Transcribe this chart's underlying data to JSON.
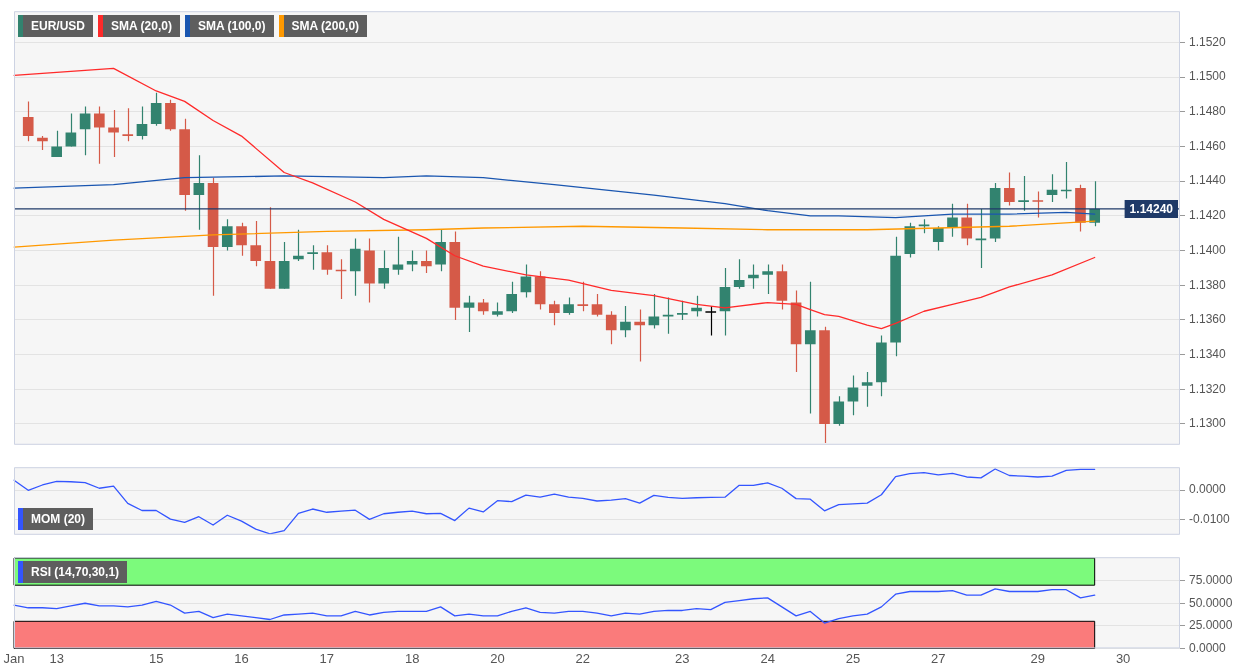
{
  "chart_data": [
    {
      "type": "candlestick",
      "categories": [
        null,
        null,
        null,
        null,
        null,
        null,
        null,
        null,
        null,
        null,
        null,
        null,
        null,
        null,
        null,
        null,
        null,
        null,
        null,
        null,
        null,
        null,
        null,
        null,
        null,
        null,
        null,
        null,
        null,
        null,
        null,
        null,
        null,
        null,
        null,
        null,
        null,
        null,
        null,
        null,
        null,
        null,
        null,
        null,
        null,
        null,
        null,
        null,
        null,
        null,
        null,
        null,
        null,
        null,
        null,
        null,
        null,
        null,
        null,
        null,
        null,
        null,
        null,
        null,
        null,
        null,
        null,
        null,
        null,
        null,
        null,
        null,
        null,
        null,
        null,
        null,
        null,
        null,
        null,
        null,
        null,
        null,
        null
      ],
      "series": [
        {
          "name": "EUR/USD",
          "type": "candlestick",
          "color": "#32836f",
          "ohlc": [
            null,
            [
              1.1477,
              1.1486,
              1.1463,
              1.1466
            ],
            [
              1.1465,
              1.1466,
              1.1458,
              1.1463
            ],
            [
              1.1454,
              1.1469,
              1.1454,
              1.146
            ],
            [
              1.146,
              1.1479,
              1.146,
              1.1468
            ],
            [
              1.147,
              1.1483,
              1.1455,
              1.1479
            ],
            [
              1.1479,
              1.1483,
              1.145,
              1.1471
            ],
            [
              1.1471,
              1.1481,
              1.1454,
              1.1468
            ],
            [
              1.1467,
              1.1482,
              1.1463,
              1.1466
            ],
            [
              1.1466,
              1.1483,
              1.1464,
              1.1473
            ],
            [
              1.1473,
              1.1491,
              1.1472,
              1.1485
            ],
            [
              1.1485,
              1.1487,
              1.1469,
              1.147
            ],
            [
              1.147,
              1.1476,
              1.1423,
              1.1432
            ],
            [
              1.1432,
              1.1455,
              1.1412,
              1.1439
            ],
            [
              1.1439,
              1.1442,
              1.1374,
              1.1402
            ],
            [
              1.1402,
              1.1418,
              1.14,
              1.1414
            ],
            [
              1.1414,
              1.1416,
              1.1397,
              1.1403
            ],
            [
              1.1403,
              1.1417,
              1.1391,
              1.1394
            ],
            [
              1.1394,
              1.1425,
              1.1378,
              1.1378
            ],
            [
              1.1378,
              1.1405,
              1.1378,
              1.1394
            ],
            [
              1.1395,
              1.1412,
              1.1394,
              1.1397
            ],
            [
              1.1398,
              1.1403,
              1.1389,
              1.1399
            ],
            [
              1.1399,
              1.1403,
              1.1386,
              1.1389
            ],
            [
              1.1389,
              1.1395,
              1.1372,
              1.1388
            ],
            [
              1.1388,
              1.1407,
              1.1374,
              1.1401
            ],
            [
              1.14,
              1.1407,
              1.137,
              1.1381
            ],
            [
              1.1381,
              1.14,
              1.1378,
              1.139
            ],
            [
              1.1389,
              1.1408,
              1.1386,
              1.1392
            ],
            [
              1.1392,
              1.14,
              1.1388,
              1.1394
            ],
            [
              1.1394,
              1.14,
              1.1387,
              1.1391
            ],
            [
              1.1392,
              1.1412,
              1.1388,
              1.1405
            ],
            [
              1.1405,
              1.1411,
              1.136,
              1.1367
            ],
            [
              1.1367,
              1.1374,
              1.1353,
              1.137
            ],
            [
              1.137,
              1.1372,
              1.1363,
              1.1365
            ],
            [
              1.1363,
              1.137,
              1.1362,
              1.1365
            ],
            [
              1.1365,
              1.1382,
              1.1364,
              1.1375
            ],
            [
              1.1376,
              1.1392,
              1.1373,
              1.1385
            ],
            [
              1.1385,
              1.1388,
              1.1366,
              1.1369
            ],
            [
              1.1369,
              1.1371,
              1.1357,
              1.1364
            ],
            [
              1.1364,
              1.1373,
              1.1363,
              1.1369
            ],
            [
              1.1369,
              1.1382,
              1.1365,
              1.1368
            ],
            [
              1.1369,
              1.1375,
              1.1362,
              1.1363
            ],
            [
              1.1363,
              1.1365,
              1.1346,
              1.1354
            ],
            [
              1.1354,
              1.1368,
              1.135,
              1.1359
            ],
            [
              1.1359,
              1.1366,
              1.1336,
              1.1357
            ],
            [
              1.1357,
              1.1375,
              1.1355,
              1.1362
            ],
            [
              1.1362,
              1.1373,
              1.1352,
              1.1363
            ],
            [
              1.1363,
              1.1371,
              1.136,
              1.1364
            ],
            [
              1.1365,
              1.1374,
              1.1362,
              1.1367
            ],
            [
              1.1365,
              1.1368,
              1.1351,
              1.1365
            ],
            [
              1.1365,
              1.139,
              1.1351,
              1.1379
            ],
            [
              1.1379,
              1.1395,
              1.1378,
              1.1383
            ],
            [
              1.1384,
              1.1392,
              1.1378,
              1.1386
            ],
            [
              1.1386,
              1.1392,
              1.1375,
              1.1388
            ],
            [
              1.1388,
              1.1392,
              1.1366,
              1.1371
            ],
            [
              1.137,
              1.1377,
              1.133,
              1.1346
            ],
            [
              1.1346,
              1.1382,
              1.1306,
              1.1354
            ],
            [
              1.1354,
              1.1356,
              1.1289,
              1.13
            ],
            [
              1.13,
              1.1316,
              1.1299,
              1.1313
            ],
            [
              1.1313,
              1.1328,
              1.1305,
              1.1321
            ],
            [
              1.1322,
              1.133,
              1.131,
              1.1324
            ],
            [
              1.1324,
              1.1351,
              1.1316,
              1.1347
            ],
            [
              1.1347,
              1.1408,
              1.1339,
              1.1397
            ],
            [
              1.1398,
              1.1416,
              1.1396,
              1.1414
            ],
            [
              1.1414,
              1.1418,
              1.141,
              1.1415
            ],
            [
              1.1405,
              1.1414,
              1.14,
              1.1413
            ],
            [
              1.1413,
              1.1427,
              1.1408,
              1.1419
            ],
            [
              1.1419,
              1.1427,
              1.1403,
              1.1407
            ],
            [
              1.1406,
              1.1424,
              1.139,
              1.1407
            ],
            [
              1.1407,
              1.1439,
              1.1405,
              1.1436
            ],
            [
              1.1436,
              1.1445,
              1.1426,
              1.1428
            ],
            [
              1.1428,
              1.1443,
              1.1423,
              1.1429
            ],
            [
              1.1429,
              1.1434,
              1.1419,
              1.1429
            ],
            [
              1.1432,
              1.1444,
              1.1428,
              1.1435
            ],
            [
              1.1435,
              1.1451,
              1.143,
              1.1435
            ],
            [
              1.1436,
              1.1438,
              1.1411,
              1.1416
            ],
            [
              1.1416,
              1.144,
              1.1414,
              1.1424
            ],
            null,
            null,
            null,
            null,
            null,
            null
          ],
          "colors": [
            null,
            "#d55a48",
            "#d55a48",
            "#32836f",
            "#32836f",
            "#32836f",
            "#d55a48",
            "#d55a48",
            "#d55a48",
            "#32836f",
            "#32836f",
            "#d55a48",
            "#d55a48",
            "#32836f",
            "#d55a48",
            "#32836f",
            "#d55a48",
            "#d55a48",
            "#d55a48",
            "#32836f",
            "#32836f",
            "#32836f",
            "#d55a48",
            "#d55a48",
            "#32836f",
            "#d55a48",
            "#32836f",
            "#32836f",
            "#32836f",
            "#d55a48",
            "#32836f",
            "#d55a48",
            "#32836f",
            "#d55a48",
            "#32836f",
            "#32836f",
            "#32836f",
            "#d55a48",
            "#d55a48",
            "#32836f",
            "#d55a48",
            "#d55a48",
            "#d55a48",
            "#32836f",
            "#d55a48",
            "#32836f",
            "#32836f",
            "#32836f",
            "#32836f",
            "#000000",
            "#32836f",
            "#32836f",
            "#32836f",
            "#32836f",
            "#d55a48",
            "#d55a48",
            "#32836f",
            "#d55a48",
            "#32836f",
            "#32836f",
            "#32836f",
            "#32836f",
            "#32836f",
            "#32836f",
            "#32836f",
            "#32836f",
            "#32836f",
            "#d55a48",
            "#32836f",
            "#32836f",
            "#d55a48",
            "#32836f",
            "#d55a48",
            "#32836f",
            "#32836f",
            "#d55a48",
            "#32836f",
            null,
            null,
            null,
            null,
            null,
            null
          ]
        },
        {
          "name": "SMA (20,0)",
          "type": "line",
          "color": "#ff2a2a",
          "values": [
            1.1501,
            null,
            null,
            null,
            null,
            null,
            null,
            1.1505,
            null,
            null,
            1.1492,
            null,
            1.1486,
            null,
            1.1475,
            null,
            1.1466,
            null,
            null,
            1.1445,
            null,
            1.1439,
            null,
            null,
            1.1428,
            null,
            1.1418,
            null,
            null,
            1.1407,
            null,
            1.1397,
            null,
            1.1391,
            null,
            null,
            1.1386,
            null,
            null,
            1.1383,
            null,
            null,
            1.1377,
            null,
            null,
            1.1374,
            null,
            null,
            1.1369,
            null,
            1.1367,
            null,
            null,
            1.137,
            null,
            1.1369,
            1.1366,
            1.1363,
            1.1362,
            null,
            1.1357,
            1.1355,
            1.1358,
            null,
            1.1365,
            null,
            1.1369,
            null,
            1.1373,
            null,
            1.1379,
            null,
            null,
            1.1386,
            null,
            null,
            1.1396,
            null,
            null,
            null,
            null,
            null,
            null
          ]
        },
        {
          "name": "SMA (100,0)",
          "type": "line",
          "color": "#1a56b0",
          "values": [
            1.1436,
            null,
            null,
            null,
            null,
            null,
            null,
            1.1438,
            null,
            null,
            null,
            null,
            1.1442,
            null,
            null,
            null,
            null,
            null,
            null,
            1.1443,
            null,
            null,
            null,
            null,
            null,
            null,
            1.1442,
            null,
            null,
            1.1443,
            null,
            null,
            null,
            1.1442,
            null,
            null,
            null,
            null,
            1.1438,
            null,
            null,
            null,
            null,
            null,
            null,
            1.1432,
            null,
            null,
            null,
            null,
            1.1427,
            null,
            null,
            1.1423,
            null,
            null,
            1.142,
            null,
            1.142,
            null,
            null,
            null,
            1.1419,
            null,
            null,
            null,
            1.1421,
            null,
            null,
            null,
            1.1421,
            null,
            null,
            null,
            1.1422,
            null,
            1.1421,
            null,
            null,
            null,
            null,
            null,
            null
          ]
        },
        {
          "name": "SMA (200,0)",
          "type": "line",
          "color": "#ff9900",
          "values": [
            1.1402,
            null,
            null,
            null,
            null,
            null,
            null,
            1.1406,
            null,
            null,
            null,
            null,
            null,
            null,
            1.1409,
            null,
            null,
            null,
            null,
            null,
            null,
            null,
            1.1411,
            null,
            null,
            null,
            null,
            null,
            null,
            1.1412,
            null,
            null,
            null,
            1.1413,
            null,
            null,
            null,
            null,
            null,
            null,
            1.1414,
            null,
            null,
            null,
            null,
            null,
            null,
            1.1413,
            null,
            null,
            null,
            null,
            null,
            1.1412,
            null,
            null,
            null,
            null,
            null,
            null,
            1.1412,
            null,
            null,
            null,
            null,
            null,
            null,
            null,
            null,
            null,
            1.1414,
            null,
            null,
            null,
            null,
            null,
            1.1417,
            null,
            null,
            null,
            null,
            null,
            null
          ]
        }
      ],
      "ylim": [
        1.1288,
        1.1538
      ],
      "yticks": [
        {
          "value": 1.13,
          "label": "1.1300"
        },
        {
          "value": 1.132,
          "label": "1.1320"
        },
        {
          "value": 1.134,
          "label": "1.1340"
        },
        {
          "value": 1.136,
          "label": "1.1360"
        },
        {
          "value": 1.138,
          "label": "1.1380"
        },
        {
          "value": 1.14,
          "label": "1.1400"
        },
        {
          "value": 1.142,
          "label": "1.1420"
        },
        {
          "value": 1.144,
          "label": "1.1440"
        },
        {
          "value": 1.146,
          "label": "1.1460"
        },
        {
          "value": 1.148,
          "label": "1.1480"
        },
        {
          "value": 1.15,
          "label": "1.1500"
        },
        {
          "value": 1.152,
          "label": "1.1520"
        }
      ],
      "ref_lines": [
        {
          "axis": "y",
          "value": 1.1424,
          "label": "1.14240",
          "color": "#1f3a68"
        }
      ],
      "grid": "y",
      "legend": "top left",
      "tick_labels": "y"
    },
    {
      "type": "line",
      "categories": [
        null,
        null,
        null,
        null,
        null,
        null,
        null,
        null,
        null,
        null,
        null,
        null,
        null,
        null,
        null,
        null,
        null,
        null,
        null,
        null,
        null,
        null,
        null,
        null,
        null,
        null,
        null,
        null,
        null,
        null,
        null,
        null,
        null,
        null,
        null,
        null,
        null,
        null,
        null,
        null,
        null,
        null,
        null,
        null,
        null,
        null,
        null,
        null,
        null,
        null,
        null,
        null,
        null,
        null,
        null,
        null,
        null,
        null,
        null,
        null,
        null,
        null,
        null,
        null,
        null,
        null,
        null,
        null,
        null,
        null,
        null,
        null,
        null,
        null,
        null,
        null,
        null,
        null,
        null,
        null,
        null,
        null,
        null
      ],
      "series": [
        {
          "name": "MOM (20)",
          "color": "#3355ff",
          "values": [
            0.0033,
            -0.0001,
            0.0017,
            0.0029,
            0.0028,
            0.0025,
            0.0006,
            0.0013,
            -0.0045,
            -0.0069,
            -0.0069,
            -0.0098,
            -0.0109,
            -0.009,
            -0.0118,
            -0.0085,
            -0.0105,
            -0.0132,
            -0.0148,
            -0.0137,
            -0.0079,
            -0.0064,
            -0.0075,
            -0.0071,
            -0.0068,
            -0.0099,
            -0.008,
            -0.0075,
            -0.0071,
            -0.008,
            -0.0079,
            -0.0103,
            -0.0061,
            -0.0074,
            -0.0036,
            -0.0039,
            -0.0017,
            -0.0024,
            -0.0014,
            -0.0024,
            -0.0028,
            -0.0037,
            -0.0034,
            -0.0029,
            -0.0044,
            -0.0018,
            -0.0025,
            -0.0028,
            -0.0026,
            -0.0025,
            -0.0024,
            0.0016,
            0.0016,
            0.0024,
            0.0006,
            -0.0029,
            -0.0031,
            -0.007,
            -0.0049,
            -0.0047,
            -0.0044,
            -0.0016,
            0.0045,
            0.0055,
            0.0059,
            0.0051,
            0.0056,
            0.0044,
            0.0041,
            0.0071,
            0.0049,
            0.0047,
            0.0044,
            0.0047,
            0.0066,
            0.007,
            0.007,
            null,
            null,
            null,
            null,
            null,
            null
          ]
        }
      ],
      "ylim": [
        -0.0151,
        0.0077
      ],
      "yticks": [
        {
          "value": -0.01,
          "label": "-0.0100"
        },
        {
          "value": 0,
          "label": "0.0000"
        }
      ],
      "grid": "y",
      "legend": "bottom left",
      "tick_labels": "y"
    },
    {
      "type": "line",
      "categories": [
        "Jan",
        null,
        null,
        "13",
        null,
        null,
        null,
        null,
        null,
        null,
        "15",
        null,
        null,
        null,
        null,
        null,
        "16",
        null,
        null,
        null,
        null,
        null,
        "17",
        null,
        null,
        null,
        null,
        null,
        "18",
        null,
        null,
        null,
        null,
        null,
        "20",
        null,
        null,
        null,
        null,
        null,
        "22",
        null,
        null,
        null,
        null,
        null,
        null,
        "23",
        null,
        null,
        null,
        null,
        null,
        "24",
        null,
        null,
        null,
        null,
        null,
        "25",
        null,
        null,
        null,
        null,
        null,
        "27",
        null,
        null,
        null,
        null,
        null,
        null,
        "29",
        null,
        null,
        null,
        null,
        null,
        "30",
        null,
        null,
        null,
        null
      ],
      "series": [
        {
          "name": "RSI (14,70,30,1)",
          "color": "#3355ff",
          "values": [
            48,
            45,
            45,
            44,
            47,
            50,
            47,
            47,
            46,
            48,
            52,
            48,
            39,
            41,
            34,
            38,
            36,
            34,
            32,
            37,
            38,
            39,
            36,
            36,
            41,
            37,
            40,
            41,
            41,
            41,
            46,
            36,
            38,
            36,
            36,
            41,
            45,
            40,
            39,
            41,
            41,
            39,
            36,
            39,
            38,
            41,
            42,
            42,
            44,
            43,
            51,
            53,
            55,
            56,
            46,
            36,
            41,
            28,
            33,
            36,
            38,
            46,
            60,
            63,
            63,
            63,
            64,
            59,
            59,
            66,
            63,
            63,
            63,
            65,
            65,
            56,
            59,
            null,
            null,
            null,
            null,
            null,
            null
          ]
        }
      ],
      "ylim": [
        0,
        101
      ],
      "yticks": [
        {
          "value": 0,
          "label": "0.0000"
        },
        {
          "value": 25,
          "label": "25.0000"
        },
        {
          "value": 50,
          "label": "50.0000"
        },
        {
          "value": 75,
          "label": "75.0000"
        }
      ],
      "bands": [
        {
          "axis": "y",
          "from": 70,
          "to": 100,
          "color": "#7cfa7c"
        },
        {
          "axis": "y",
          "from": 0,
          "to": 30,
          "color": "#fa7b7b"
        }
      ],
      "grid": "y",
      "legend": "top left"
    }
  ]
}
